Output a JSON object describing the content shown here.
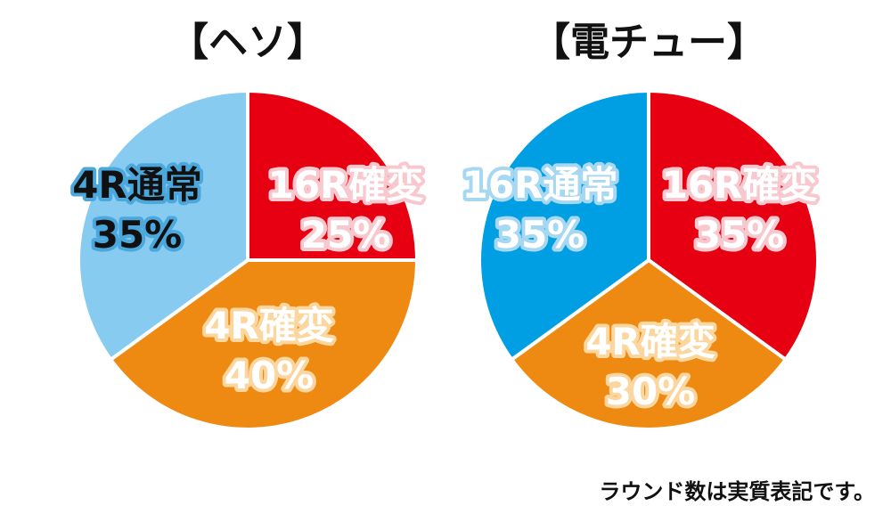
{
  "footnote": "ラウンド数は実質表記です。",
  "chart_data": [
    {
      "type": "pie",
      "title": "【ヘソ】",
      "slices": [
        {
          "label": "16R確変",
          "value": 25,
          "display": "25%",
          "color": "#e60012",
          "text_color": "#ffffff",
          "outline_color": "#f7c9cf"
        },
        {
          "label": "4R確変",
          "value": 40,
          "display": "40%",
          "color": "#ee8a12",
          "text_color": "#ffffff",
          "outline_color": "#fbd79f"
        },
        {
          "label": "4R通常",
          "value": 35,
          "display": "35%",
          "color": "#87cbf0",
          "text_color": "#111111",
          "outline_color": "#4aa8dc"
        }
      ]
    },
    {
      "type": "pie",
      "title": "【電チュー】",
      "slices": [
        {
          "label": "16R確変",
          "value": 35,
          "display": "35%",
          "color": "#e60012",
          "text_color": "#ffffff",
          "outline_color": "#f7c9cf"
        },
        {
          "label": "4R確変",
          "value": 30,
          "display": "30%",
          "color": "#ee8a12",
          "text_color": "#ffffff",
          "outline_color": "#fbd79f"
        },
        {
          "label": "16R通常",
          "value": 35,
          "display": "35%",
          "color": "#009ee2",
          "text_color": "#ffffff",
          "outline_color": "#a6d8f2"
        }
      ]
    }
  ]
}
